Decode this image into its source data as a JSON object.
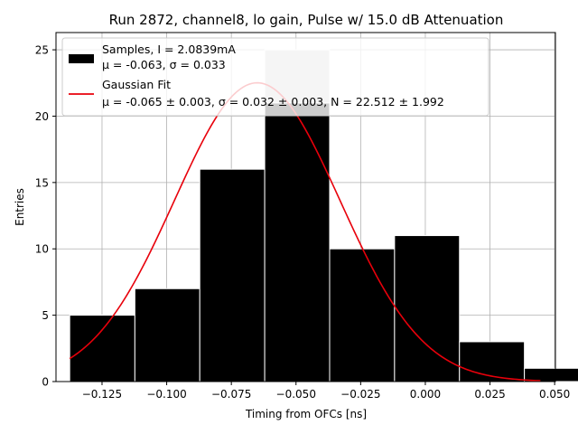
{
  "chart_data": {
    "type": "bar",
    "title": "Run 2872, channel8, lo gain, Pulse w/ 15.0 dB Attenuation",
    "xlabel": "Timing from OFCs [ns]",
    "ylabel": "Entries",
    "xlim": [
      -0.1428,
      0.0503
    ],
    "ylim": [
      0,
      26.3
    ],
    "grid": true,
    "legend_position": "top-left",
    "x_ticks": [
      -0.125,
      -0.1,
      -0.075,
      -0.05,
      -0.025,
      0.0,
      0.025,
      0.05
    ],
    "x_tick_labels": [
      "−0.125",
      "−0.100",
      "−0.075",
      "−0.050",
      "−0.025",
      "0.000",
      "0.025",
      "0.050"
    ],
    "y_ticks": [
      0,
      5,
      10,
      15,
      20,
      25
    ],
    "y_tick_labels": [
      "0",
      "5",
      "10",
      "15",
      "20",
      "25"
    ],
    "bins": [
      {
        "left": -0.1375,
        "right": -0.1123,
        "count": 5
      },
      {
        "left": -0.1123,
        "right": -0.0872,
        "count": 7
      },
      {
        "left": -0.0872,
        "right": -0.0621,
        "count": 16
      },
      {
        "left": -0.0621,
        "right": -0.037,
        "count": 21
      },
      {
        "left": -0.037,
        "right": -0.0119,
        "count": 10
      },
      {
        "left": -0.0119,
        "right": 0.0132,
        "count": 11
      },
      {
        "left": 0.0132,
        "right": 0.0383,
        "count": 3
      },
      {
        "left": 0.0383,
        "right": 0.0634,
        "count": 1
      }
    ],
    "overlay_bar": {
      "left": -0.0621,
      "right": -0.037,
      "count": 25,
      "color": "#cccccc"
    },
    "series": [
      {
        "name": "Samples, I = 2.0839mA",
        "stats": "μ = -0.063, σ = 0.033",
        "color": "#000000"
      },
      {
        "name": "Gaussian Fit",
        "stats": "μ = -0.065 ± 0.003, σ = 0.032 ± 0.003, N = 22.512 ± 1.992",
        "color": "#e8000b",
        "mu": -0.065,
        "sigma": 0.032,
        "N": 22.512,
        "x_range": [
          -0.1375,
          0.0445
        ]
      }
    ]
  }
}
